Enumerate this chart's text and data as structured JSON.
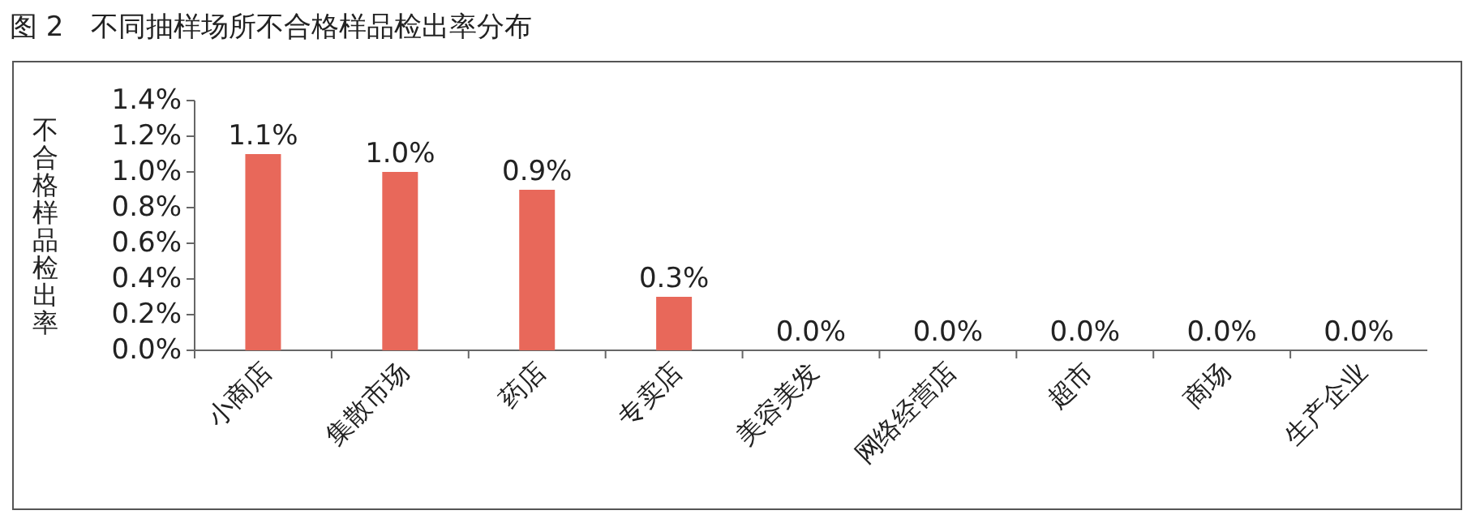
{
  "chart_data": {
    "type": "bar",
    "title": "图 2　不同抽样场所不合格样品检出率分布",
    "ylabel": "不合格样品检出率",
    "categories": [
      "小商店",
      "集散市场",
      "药店",
      "专卖店",
      "美容美发",
      "网络经营店",
      "超市",
      "商场",
      "生产企业"
    ],
    "values": [
      1.1,
      1.0,
      0.9,
      0.3,
      0,
      0,
      0,
      0,
      0
    ],
    "value_labels": [
      "1.1%",
      "1.0%",
      "0.9%",
      "0.3%",
      "0.0%",
      "0.0%",
      "0.0%",
      "0.0%",
      "0.0%"
    ],
    "color": "#e8685a",
    "ylim": [
      0,
      1.4
    ],
    "yticks": [
      {
        "value": 0,
        "label": "0.0%"
      },
      {
        "value": 0.2,
        "label": "0.2%"
      },
      {
        "value": 0.4,
        "label": "0.4%"
      },
      {
        "value": 0.6,
        "label": "0.6%"
      },
      {
        "value": 0.8,
        "label": "0.8%"
      },
      {
        "value": 1.0,
        "label": "1.0%"
      },
      {
        "value": 1.2,
        "label": "1.2%"
      },
      {
        "value": 1.4,
        "label": "1.4%"
      }
    ]
  }
}
